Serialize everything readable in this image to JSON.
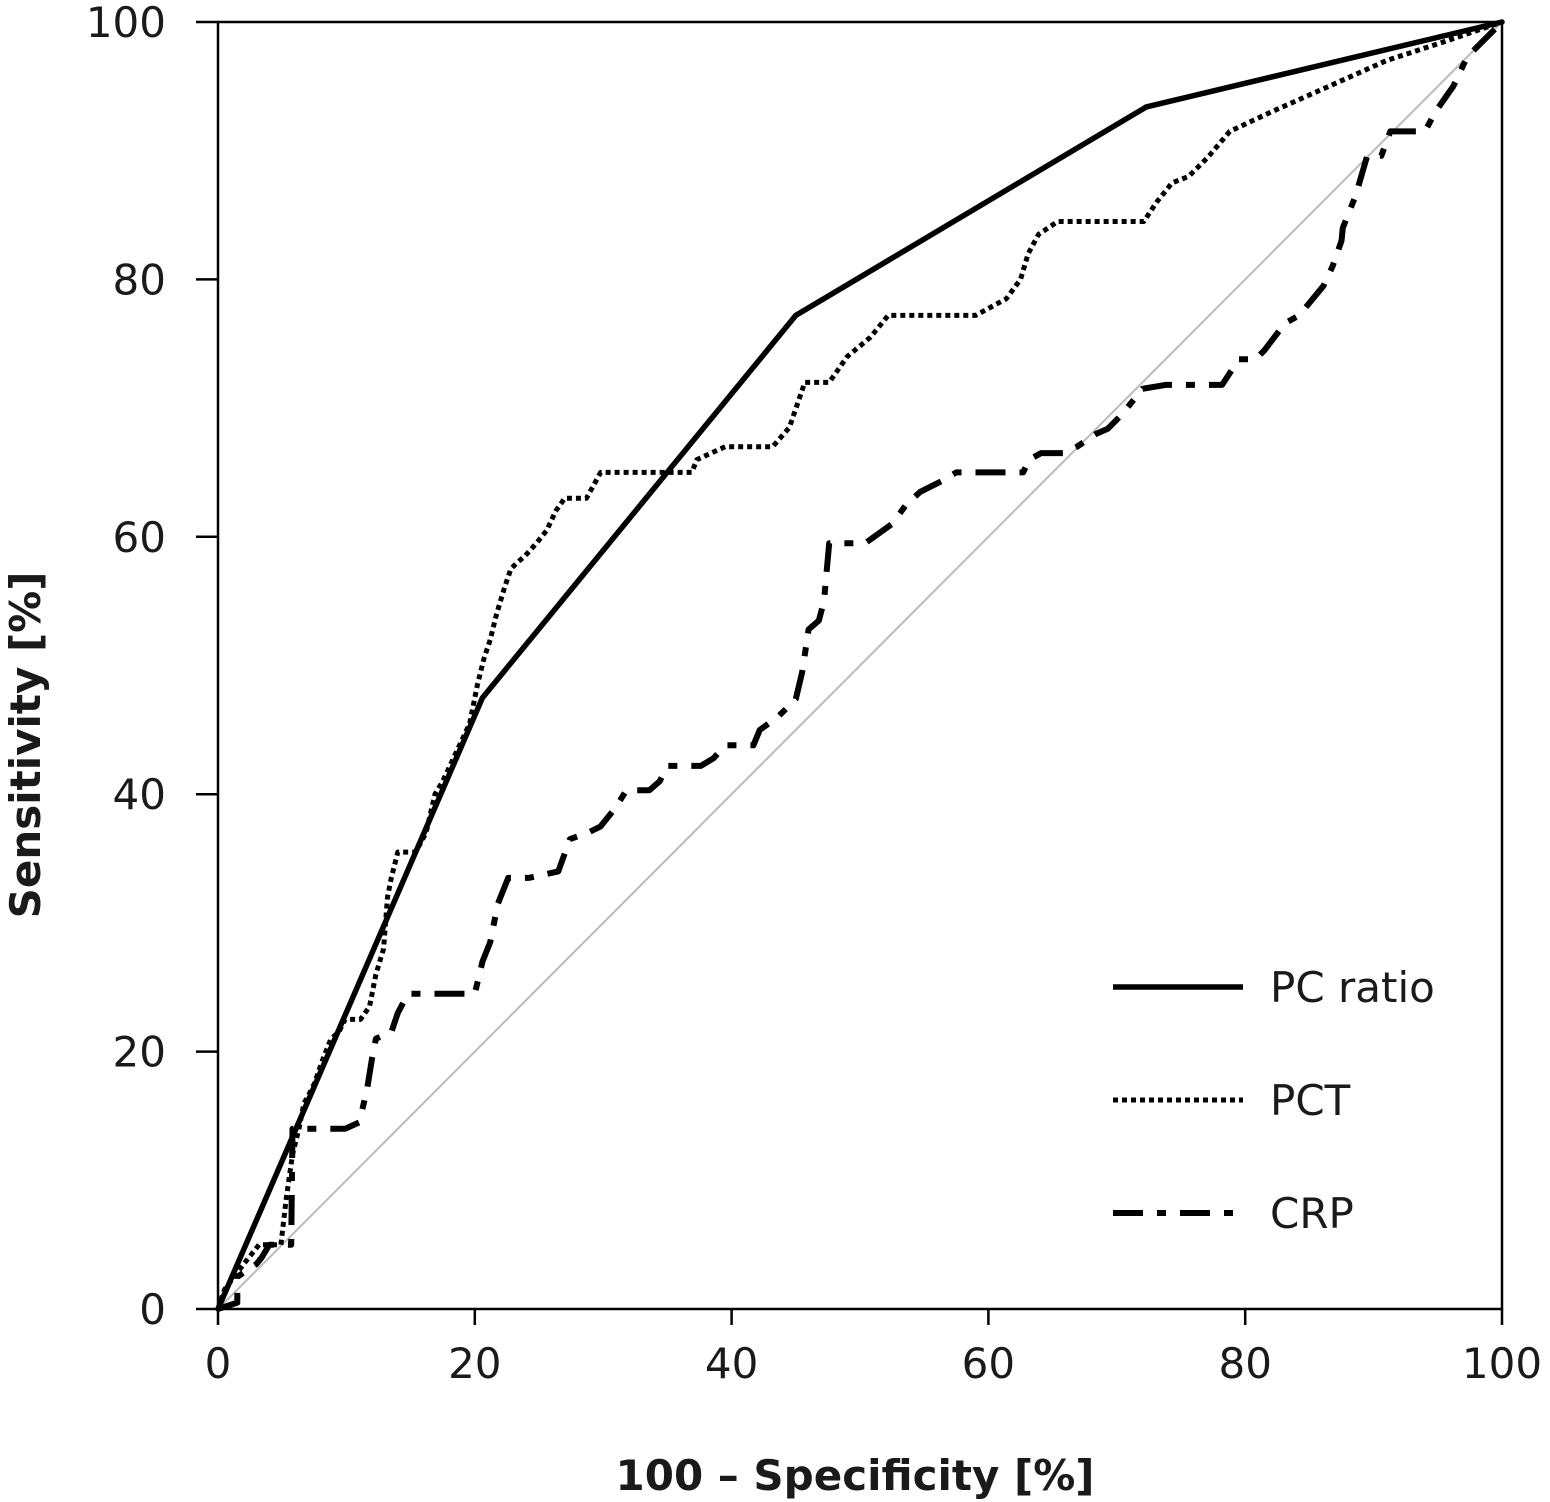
{
  "chart_data": {
    "type": "line",
    "title": "",
    "xlabel": "100 – Specificity [%]",
    "ylabel": "Sensitivity [%]",
    "xlim": [
      0,
      100
    ],
    "ylim": [
      0,
      100
    ],
    "xticks": [
      0,
      20,
      40,
      60,
      80,
      100
    ],
    "yticks": [
      0,
      20,
      40,
      60,
      80,
      100
    ],
    "grid": false,
    "legend_position": "bottom-right",
    "reference_line": {
      "x": [
        0,
        100
      ],
      "y": [
        0,
        100
      ],
      "color": "#bbbbbb"
    },
    "series": [
      {
        "name": "PC ratio",
        "style": "solid",
        "color": "#000000",
        "x": [
          0,
          20.6,
          45,
          72.3,
          100
        ],
        "y": [
          0,
          47.5,
          77.2,
          93.4,
          100
        ]
      },
      {
        "name": "PCT",
        "style": "dotted",
        "color": "#000000",
        "x": [
          0,
          0.5,
          2,
          3.2,
          4.9,
          5.3,
          5.8,
          6.3,
          6.7,
          7,
          7.5,
          8.2,
          8.8,
          9.4,
          9.9,
          10.4,
          11.1,
          11.8,
          12.3,
          12.9,
          13.2,
          13.5,
          14,
          14.6,
          15.4,
          16.2,
          16.9,
          17.5,
          18.2,
          18.9,
          19.6,
          20.2,
          20.7,
          21.2,
          21.7,
          22.3,
          22.8,
          23.3,
          23.9,
          24.8,
          25.6,
          26.3,
          27,
          28.7,
          29.8,
          31.5,
          34,
          36.9,
          37.3,
          39.5,
          42.1,
          43.2,
          44.5,
          45.7,
          47.6,
          49,
          50.8,
          52.2,
          55,
          59,
          61.4,
          62.5,
          63.1,
          63.9,
          65.4,
          68.2,
          72.1,
          73.1,
          74.3,
          75.6,
          77.1,
          78.8,
          82,
          86.5,
          91,
          95.6,
          100
        ],
        "y": [
          0,
          1.5,
          3.5,
          5,
          5,
          8.5,
          12,
          14,
          16,
          16.5,
          17.5,
          19.5,
          21,
          21.5,
          22.5,
          22.5,
          22.5,
          23.5,
          26,
          28,
          32,
          33.5,
          35.5,
          35.5,
          35.5,
          37,
          40,
          41,
          42.5,
          44,
          45.5,
          48.5,
          50.5,
          52,
          54,
          56,
          57.5,
          58,
          58.5,
          59.5,
          60.5,
          62,
          63,
          63,
          65,
          65,
          65,
          65,
          66,
          67,
          67,
          67,
          68.5,
          72,
          72,
          74,
          75.5,
          77.2,
          77.2,
          77.2,
          78.5,
          80,
          82,
          83.5,
          84.5,
          84.5,
          84.5,
          86,
          87.5,
          88,
          89.5,
          91.5,
          93,
          95,
          97,
          98.5,
          100
        ]
      },
      {
        "name": "CRP",
        "style": "dashdot",
        "color": "#000000",
        "x": [
          0,
          1.5,
          1.5,
          3,
          3.4,
          4,
          5.7,
          5.8,
          7.6,
          9.9,
          11,
          11.6,
          12,
          12.3,
          13.5,
          14,
          14.8,
          16,
          18.5,
          20,
          20.6,
          21.2,
          21.8,
          22.6,
          24.2,
          26.5,
          27.4,
          28.8,
          29.8,
          31,
          31.8,
          33.6,
          34.4,
          35,
          35.9,
          37.6,
          38.6,
          39.5,
          41.7,
          42.2,
          43.6,
          45,
          45.5,
          46,
          46.8,
          47.2,
          47.6,
          48.5,
          50.4,
          52.5,
          53.6,
          54.7,
          56.5,
          57.5,
          58.6,
          60.5,
          61.7,
          62.7,
          63.2,
          64.1,
          65.8,
          66.9,
          68.4,
          69.3,
          70.4,
          72,
          73.8,
          75.5,
          78.2,
          79.5,
          80.8,
          81.5,
          83.1,
          84.2,
          86.1,
          86.8,
          87.5,
          87.6,
          88.6,
          89.5,
          90.6,
          91.3,
          94,
          94.8,
          96.2,
          97.3,
          100
        ],
        "y": [
          0,
          0.5,
          2.5,
          3.5,
          4,
          5,
          5,
          14,
          14,
          14,
          14.5,
          17,
          19.5,
          21,
          21.5,
          23,
          24.5,
          24.5,
          24.5,
          24.5,
          27,
          28.5,
          31.5,
          33.5,
          33.5,
          34,
          36.5,
          37,
          37.5,
          39,
          40.3,
          40.3,
          41,
          42.2,
          42.2,
          42.2,
          42.8,
          43.8,
          43.8,
          45,
          46,
          47.4,
          49.5,
          52.8,
          53.5,
          55,
          59.5,
          59.5,
          59.5,
          61,
          62.5,
          63.5,
          64.4,
          65,
          65,
          65,
          65,
          65,
          66,
          66.5,
          66.5,
          67,
          68,
          68.4,
          69.5,
          71.5,
          71.8,
          71.8,
          71.8,
          73.8,
          73.8,
          74.5,
          76.6,
          77.2,
          79.5,
          81,
          83,
          84,
          86.5,
          89.6,
          89.6,
          91.5,
          91.5,
          93,
          95,
          97.3,
          100
        ]
      }
    ]
  }
}
